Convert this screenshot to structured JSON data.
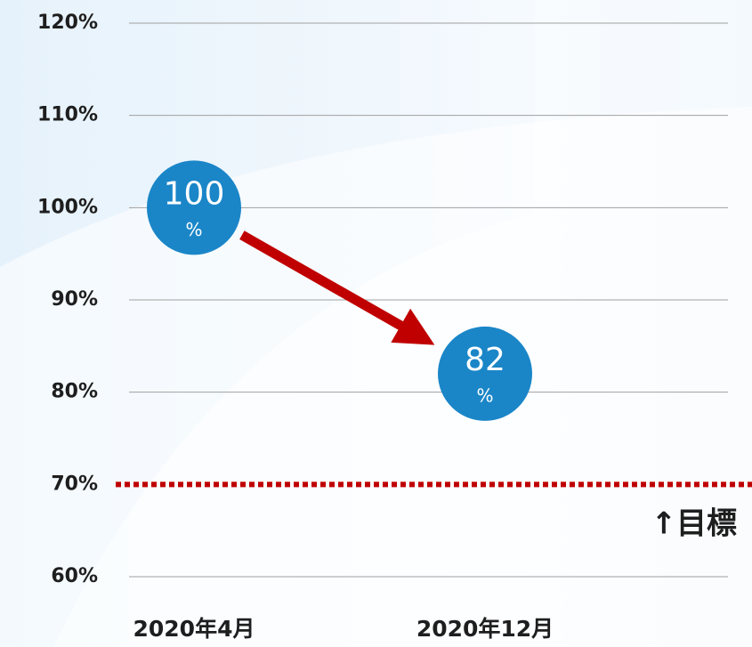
{
  "chart_data": {
    "type": "line",
    "categories": [
      "2020年4月",
      "2020年12月"
    ],
    "values": [
      100,
      82
    ],
    "value_unit": "%",
    "color": "#1a86c8",
    "line_color": "#c00000",
    "ylim": [
      60,
      120
    ],
    "yticks": [
      {
        "value": 60,
        "label": "60%"
      },
      {
        "value": 70,
        "label": "70%"
      },
      {
        "value": 80,
        "label": "80%"
      },
      {
        "value": 90,
        "label": "90%"
      },
      {
        "value": 100,
        "label": "100%"
      },
      {
        "value": 110,
        "label": "110%"
      },
      {
        "value": 120,
        "label": "120%"
      }
    ],
    "grid": true,
    "target": {
      "value": 70,
      "label": "↑目標",
      "color": "#c00000"
    }
  }
}
